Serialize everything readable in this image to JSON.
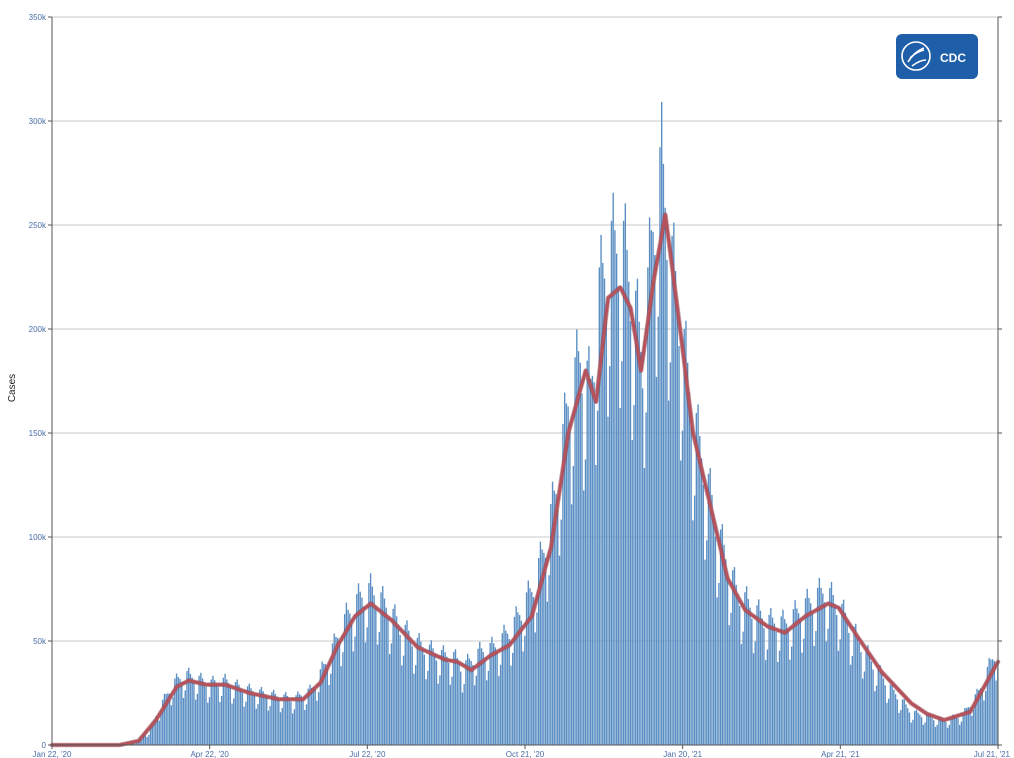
{
  "chart_data": {
    "type": "bar",
    "ylabel": "Cases",
    "ylim": [
      0,
      350000
    ],
    "y_ticks": [
      0,
      50000,
      100000,
      150000,
      200000,
      250000,
      300000,
      350000
    ],
    "y_tick_labels": [
      "0",
      "50k",
      "100k",
      "150k",
      "200k",
      "250k",
      "300k",
      "350k"
    ],
    "x_range": [
      "2020-01-22",
      "2021-07-21"
    ],
    "x_ticks": [
      "2020-01-22",
      "2020-04-22",
      "2020-07-22",
      "2020-10-21",
      "2021-01-20",
      "2021-04-21",
      "2021-07-21"
    ],
    "x_tick_labels": [
      "Jan 22, '20",
      "Apr 22, '20",
      "Jul 22, '20",
      "Oct 21, '20",
      "Jan 20, '21",
      "Apr 21, '21",
      "Jul 21, '21"
    ],
    "grid": true,
    "colors": {
      "bars": "#5b8fc4",
      "moving_average": "#b5525c",
      "gridline": "#c8c8c8"
    },
    "series": [
      {
        "type": "bar",
        "approximate_daily_values_by_date": {
          "2020-01-22": 0,
          "2020-02-29": 0,
          "2020-03-10": 1000,
          "2020-03-18": 6000,
          "2020-03-25": 18000,
          "2020-04-01": 28000,
          "2020-04-08": 32000,
          "2020-04-15": 30000,
          "2020-04-22": 28000,
          "2020-05-01": 29000,
          "2020-05-10": 26000,
          "2020-05-20": 24000,
          "2020-06-01": 22000,
          "2020-06-10": 21000,
          "2020-06-20": 25000,
          "2020-06-30": 40000,
          "2020-07-10": 58000,
          "2020-07-18": 67000,
          "2020-07-24": 70000,
          "2020-08-01": 64000,
          "2020-08-10": 54000,
          "2020-08-20": 46000,
          "2020-09-01": 41000,
          "2020-09-10": 40000,
          "2020-09-15": 35000,
          "2020-09-25": 42000,
          "2020-10-05": 45000,
          "2020-10-15": 55000,
          "2020-10-25": 70000,
          "2020-11-01": 88000,
          "2020-11-08": 115000,
          "2020-11-15": 155000,
          "2020-11-22": 175000,
          "2020-11-28": 160000,
          "2020-12-03": 205000,
          "2020-12-10": 225000,
          "2020-12-17": 225000,
          "2020-12-24": 195000,
          "2020-12-28": 175000,
          "2021-01-03": 235000,
          "2021-01-08": 262000,
          "2021-01-12": 230000,
          "2021-01-19": 190000,
          "2021-01-26": 150000,
          "2021-02-03": 120000,
          "2021-02-10": 95000,
          "2021-02-20": 70000,
          "2021-03-01": 62000,
          "2021-03-10": 56000,
          "2021-03-20": 55000,
          "2021-04-01": 63000,
          "2021-04-12": 70000,
          "2021-04-21": 62000,
          "2021-05-01": 48000,
          "2021-05-10": 37000,
          "2021-05-20": 26000,
          "2021-06-01": 15000,
          "2021-06-10": 13000,
          "2021-06-20": 11000,
          "2021-07-01": 14000,
          "2021-07-10": 24000,
          "2021-07-21": 45000
        }
      },
      {
        "type": "line",
        "approximate_values_by_date": {
          "2020-01-22": 0,
          "2020-03-01": 0,
          "2020-03-12": 2000,
          "2020-03-22": 12000,
          "2020-04-03": 28000,
          "2020-04-10": 31000,
          "2020-04-20": 29000,
          "2020-05-01": 29000,
          "2020-05-15": 25000,
          "2020-06-01": 22000,
          "2020-06-15": 22000,
          "2020-06-25": 30000,
          "2020-07-05": 48000,
          "2020-07-15": 62000,
          "2020-07-24": 68000,
          "2020-08-05": 60000,
          "2020-08-20": 47000,
          "2020-09-05": 41000,
          "2020-09-12": 40000,
          "2020-09-20": 36000,
          "2020-10-01": 43000,
          "2020-10-12": 48000,
          "2020-10-25": 62000,
          "2020-11-05": 95000,
          "2020-11-15": 150000,
          "2020-11-25": 180000,
          "2020-12-01": 165000,
          "2020-12-08": 215000,
          "2020-12-15": 220000,
          "2020-12-21": 210000,
          "2020-12-27": 180000,
          "2021-01-03": 222000,
          "2021-01-10": 255000,
          "2021-01-17": 210000,
          "2021-01-26": 150000,
          "2021-02-05": 115000,
          "2021-02-15": 80000,
          "2021-02-25": 65000,
          "2021-03-10": 57000,
          "2021-03-20": 54000,
          "2021-04-01": 62000,
          "2021-04-14": 68000,
          "2021-04-20": 66000,
          "2021-05-01": 52000,
          "2021-05-15": 35000,
          "2021-06-01": 20000,
          "2021-06-10": 15000,
          "2021-06-20": 12000,
          "2021-07-05": 16000,
          "2021-07-21": 40000
        }
      }
    ]
  },
  "logo": {
    "text": "CDC",
    "icon": "hhs-eagle-icon",
    "color": "#1f5ea8"
  }
}
